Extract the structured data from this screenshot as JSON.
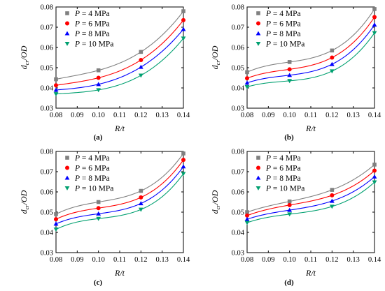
{
  "chart_data": [
    {
      "panel": "(a)",
      "type": "line",
      "xlabel": "R/t",
      "ylabel": "dcr/OD",
      "xlim": [
        0.08,
        0.14
      ],
      "ylim": [
        0.03,
        0.08
      ],
      "xticks": [
        "0.08",
        "0.09",
        "0.10",
        "0.11",
        "0.12",
        "0.13",
        "0.14"
      ],
      "yticks": [
        "0.03",
        "0.04",
        "0.05",
        "0.06",
        "0.07",
        "0.08"
      ],
      "legend_position": "top-left",
      "series": [
        {
          "name": "P = 4 MPa",
          "color": "#808080",
          "marker": "square",
          "x": [
            0.08,
            0.1,
            0.12,
            0.14
          ],
          "y": [
            0.0443,
            0.0487,
            0.0578,
            0.0779
          ]
        },
        {
          "name": "P = 6 MPa",
          "color": "#ff0000",
          "marker": "circle",
          "x": [
            0.08,
            0.1,
            0.12,
            0.14
          ],
          "y": [
            0.0413,
            0.045,
            0.0538,
            0.0735
          ]
        },
        {
          "name": "P = 8 MPa",
          "color": "#0000ff",
          "marker": "triangle-up",
          "x": [
            0.08,
            0.1,
            0.12,
            0.14
          ],
          "y": [
            0.039,
            0.0418,
            0.0503,
            0.069
          ]
        },
        {
          "name": "P = 10 MPa",
          "color": "#00a070",
          "marker": "triangle-down",
          "x": [
            0.08,
            0.1,
            0.12,
            0.14
          ],
          "y": [
            0.037,
            0.039,
            0.0462,
            0.0645
          ]
        }
      ]
    },
    {
      "panel": "(b)",
      "type": "line",
      "xlabel": "R/t",
      "ylabel": "dcr/OD",
      "xlim": [
        0.08,
        0.14
      ],
      "ylim": [
        0.03,
        0.08
      ],
      "xticks": [
        "0.08",
        "0.09",
        "0.10",
        "0.11",
        "0.12",
        "0.13",
        "0.14"
      ],
      "yticks": [
        "0.03",
        "0.04",
        "0.05",
        "0.06",
        "0.07",
        "0.08"
      ],
      "legend_position": "top-left",
      "series": [
        {
          "name": "P = 4 MPa",
          "color": "#808080",
          "marker": "square",
          "x": [
            0.08,
            0.1,
            0.12,
            0.14
          ],
          "y": [
            0.0478,
            0.0528,
            0.0585,
            0.079
          ]
        },
        {
          "name": "P = 6 MPa",
          "color": "#ff0000",
          "marker": "circle",
          "x": [
            0.08,
            0.1,
            0.12,
            0.14
          ],
          "y": [
            0.0448,
            0.0492,
            0.055,
            0.075
          ]
        },
        {
          "name": "P = 8 MPa",
          "color": "#0000ff",
          "marker": "triangle-up",
          "x": [
            0.08,
            0.1,
            0.12,
            0.14
          ],
          "y": [
            0.0425,
            0.0463,
            0.0517,
            0.0712
          ]
        },
        {
          "name": "P = 10 MPa",
          "color": "#00a070",
          "marker": "triangle-down",
          "x": [
            0.08,
            0.1,
            0.12,
            0.14
          ],
          "y": [
            0.0405,
            0.0435,
            0.0483,
            0.0672
          ]
        }
      ]
    },
    {
      "panel": "(c)",
      "type": "line",
      "xlabel": "R/t",
      "ylabel": "dcr/OD",
      "xlim": [
        0.08,
        0.14
      ],
      "ylim": [
        0.03,
        0.08
      ],
      "xticks": [
        "0.08",
        "0.09",
        "0.10",
        "0.11",
        "0.12",
        "0.13",
        "0.14"
      ],
      "yticks": [
        "0.03",
        "0.04",
        "0.05",
        "0.06",
        "0.07",
        "0.08"
      ],
      "legend_position": "top-left",
      "series": [
        {
          "name": "P = 4 MPa",
          "color": "#808080",
          "marker": "square",
          "x": [
            0.08,
            0.1,
            0.12,
            0.14
          ],
          "y": [
            0.049,
            0.055,
            0.0605,
            0.079
          ]
        },
        {
          "name": "P = 6 MPa",
          "color": "#ff0000",
          "marker": "circle",
          "x": [
            0.08,
            0.1,
            0.12,
            0.14
          ],
          "y": [
            0.0465,
            0.052,
            0.0573,
            0.0758
          ]
        },
        {
          "name": "P = 8 MPa",
          "color": "#0000ff",
          "marker": "triangle-up",
          "x": [
            0.08,
            0.1,
            0.12,
            0.14
          ],
          "y": [
            0.0442,
            0.0492,
            0.0543,
            0.0725
          ]
        },
        {
          "name": "P = 10 MPa",
          "color": "#00a070",
          "marker": "triangle-down",
          "x": [
            0.08,
            0.1,
            0.12,
            0.14
          ],
          "y": [
            0.0415,
            0.0468,
            0.0513,
            0.069
          ]
        }
      ]
    },
    {
      "panel": "(d)",
      "type": "line",
      "xlabel": "R/t",
      "ylabel": "dcr/OD",
      "xlim": [
        0.08,
        0.14
      ],
      "ylim": [
        0.03,
        0.08
      ],
      "xticks": [
        "0.08",
        "0.09",
        "0.10",
        "0.11",
        "0.12",
        "0.13",
        "0.14"
      ],
      "yticks": [
        "0.03",
        "0.04",
        "0.05",
        "0.06",
        "0.07",
        "0.08"
      ],
      "legend_position": "top-left",
      "series": [
        {
          "name": "P = 4 MPa",
          "color": "#808080",
          "marker": "square",
          "x": [
            0.08,
            0.1,
            0.12,
            0.14
          ],
          "y": [
            0.05,
            0.0553,
            0.061,
            0.0735
          ]
        },
        {
          "name": "P = 6 MPa",
          "color": "#ff0000",
          "marker": "circle",
          "x": [
            0.08,
            0.1,
            0.12,
            0.14
          ],
          "y": [
            0.0483,
            0.0535,
            0.0583,
            0.0705
          ]
        },
        {
          "name": "P = 8 MPa",
          "color": "#0000ff",
          "marker": "triangle-up",
          "x": [
            0.08,
            0.1,
            0.12,
            0.14
          ],
          "y": [
            0.0465,
            0.051,
            0.0555,
            0.0675
          ]
        },
        {
          "name": "P = 10 MPa",
          "color": "#00a070",
          "marker": "triangle-down",
          "x": [
            0.08,
            0.1,
            0.12,
            0.14
          ],
          "y": [
            0.0448,
            0.049,
            0.0528,
            0.0648
          ]
        }
      ]
    }
  ]
}
